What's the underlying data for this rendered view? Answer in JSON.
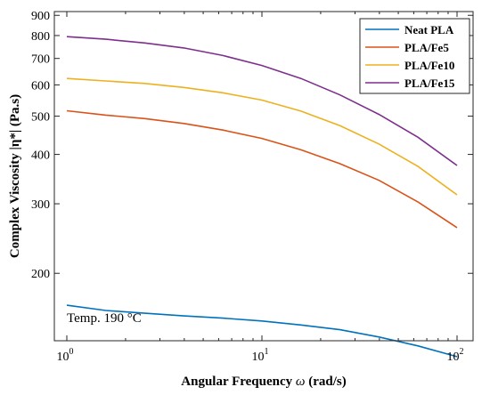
{
  "chart_data": {
    "type": "line",
    "xscale": "log",
    "yscale": "log",
    "xlim": [
      1,
      100
    ],
    "ylim": [
      135,
      920
    ],
    "xlabel_pre": "Angular Frequency ",
    "xlabel_sym": "ω",
    "xlabel_post": " (rad/s)",
    "ylabel": "Complex Viscosity |η*| (Pa.s)",
    "x_ticks": [
      {
        "value": 1,
        "base": "10",
        "exp": "0"
      },
      {
        "value": 10,
        "base": "10",
        "exp": "1"
      },
      {
        "value": 100,
        "base": "10",
        "exp": "2"
      }
    ],
    "y_ticks": [
      {
        "value": 200,
        "label": "200"
      },
      {
        "value": 300,
        "label": "300"
      },
      {
        "value": 400,
        "label": "400"
      },
      {
        "value": 500,
        "label": "500"
      },
      {
        "value": 600,
        "label": "600"
      },
      {
        "value": 700,
        "label": "700"
      },
      {
        "value": 800,
        "label": "800"
      },
      {
        "value": 900,
        "label": "900"
      }
    ],
    "x": [
      1,
      1.585,
      2.512,
      3.981,
      6.31,
      10,
      15.85,
      25.12,
      39.81,
      63.1,
      100
    ],
    "series": [
      {
        "name": "Neat PLA",
        "color": "#0072BD",
        "values": [
          166,
          161,
          158.5,
          156,
          154,
          151.5,
          148,
          144,
          138,
          131,
          123
        ]
      },
      {
        "name": "PLA/Fe5",
        "color": "#D95319",
        "values": [
          516,
          503,
          493,
          479,
          461,
          439,
          411,
          379,
          344,
          303,
          261
        ]
      },
      {
        "name": "PLA/Fe10",
        "color": "#EDB120",
        "values": [
          623,
          614,
          605,
          591,
          573,
          549,
          515,
          473,
          425,
          373,
          316
        ]
      },
      {
        "name": "PLA/Fe15",
        "color": "#7E2F8E",
        "values": [
          795,
          783,
          766,
          744,
          712,
          672,
          623,
          566,
          505,
          442,
          375
        ]
      }
    ],
    "grid": false,
    "legend_position": "top-right",
    "annotation": "Temp. 190 °C"
  }
}
